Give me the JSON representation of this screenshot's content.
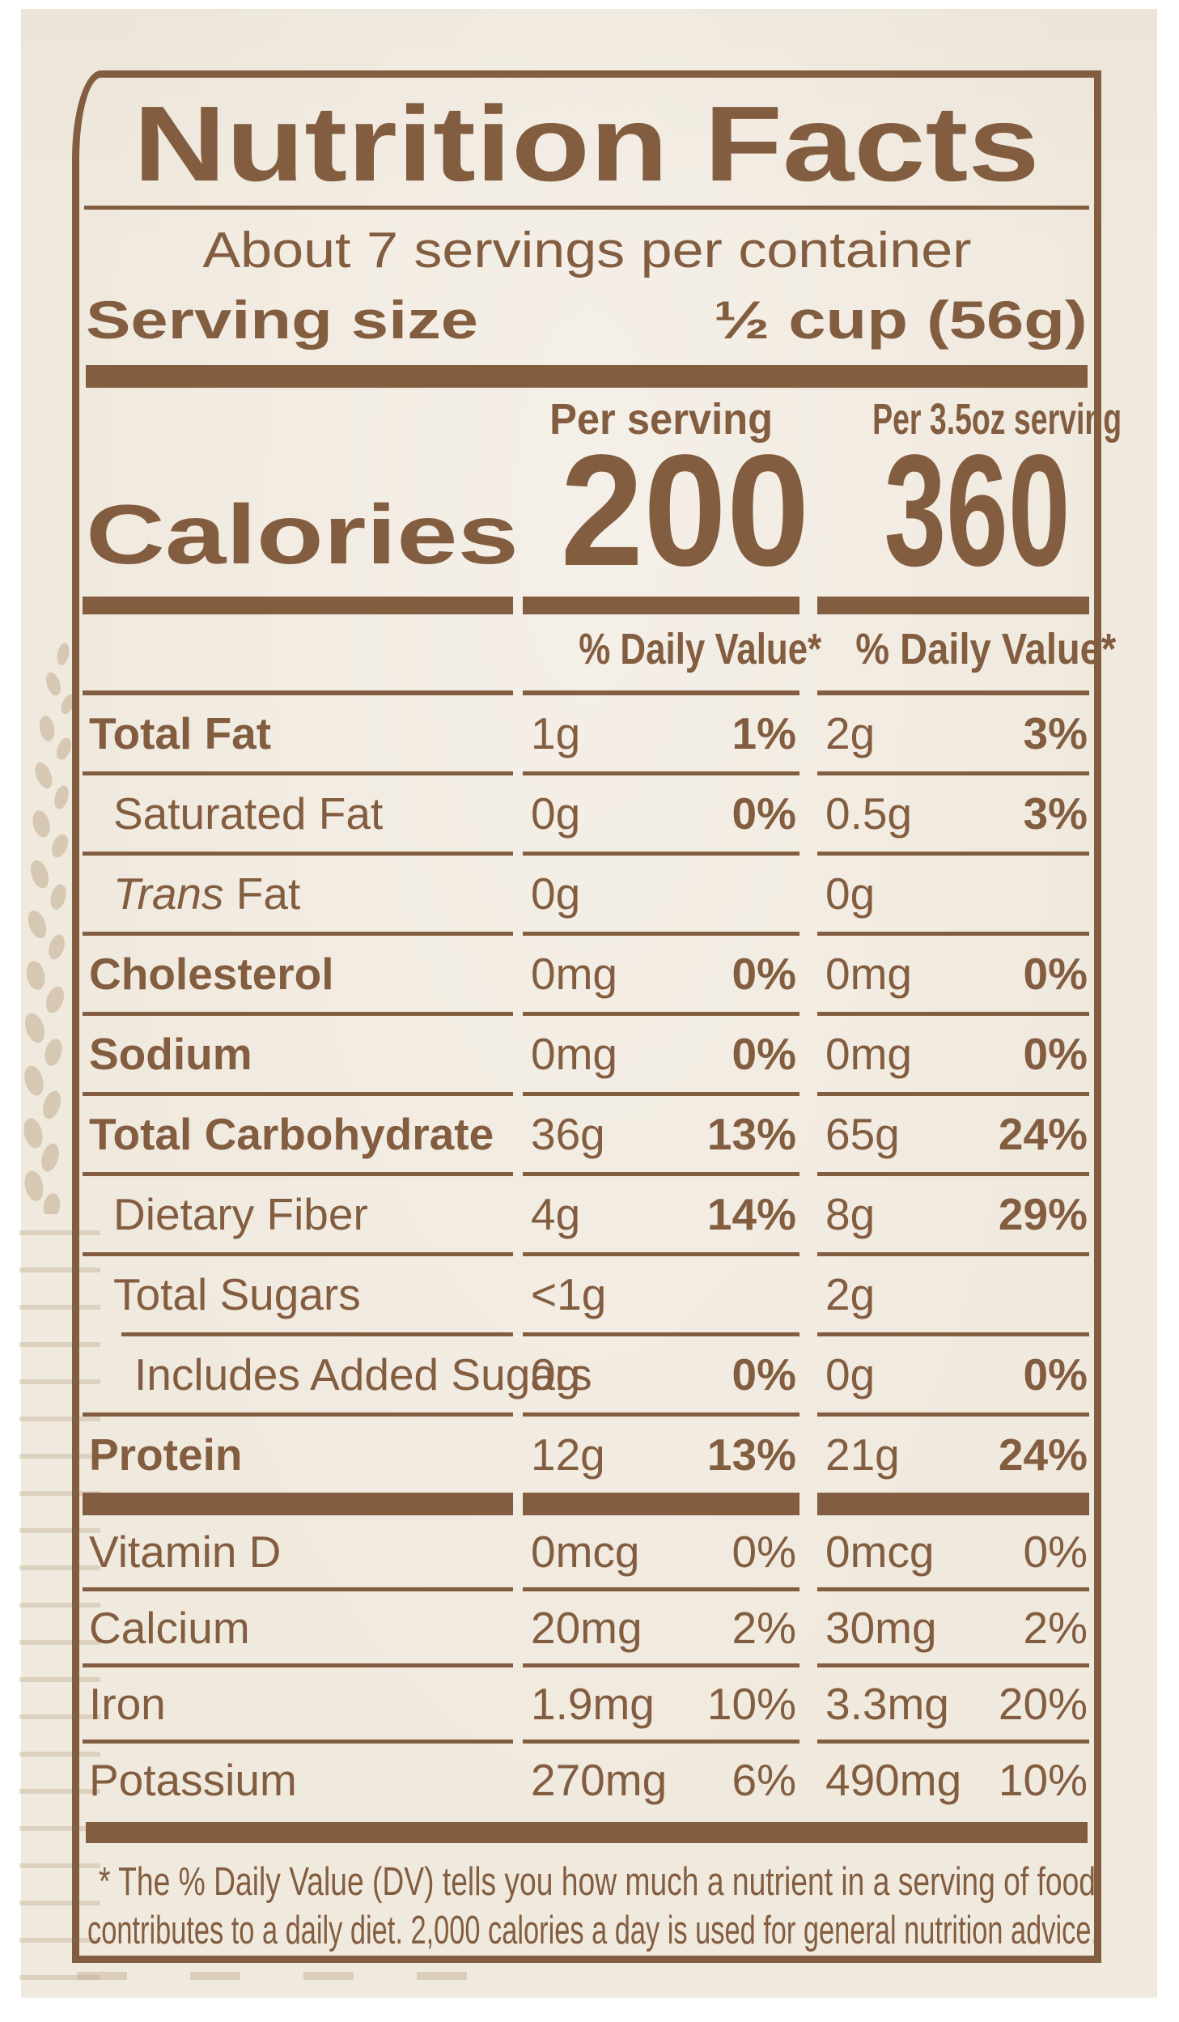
{
  "label": {
    "title": "Nutrition Facts",
    "servings_per_container": "About 7 servings per container",
    "serving_size_label": "Serving size",
    "serving_size_value": "½ cup (56g)",
    "calories_label": "Calories",
    "columns": [
      {
        "header": "Per serving",
        "calories": "200",
        "dv_header": "% Daily Value*"
      },
      {
        "header": "Per 3.5oz serving",
        "calories": "360",
        "dv_header": "% Daily Value*"
      }
    ],
    "rows": [
      {
        "label": "Total Fat",
        "bold": true,
        "indent": 0,
        "c1_amount": "1g",
        "c1_pct": "1%",
        "c2_amount": "2g",
        "c2_pct": "3%",
        "pct_bold": true
      },
      {
        "label": "Saturated Fat",
        "bold": false,
        "indent": 1,
        "c1_amount": "0g",
        "c1_pct": "0%",
        "c2_amount": "0.5g",
        "c2_pct": "3%",
        "pct_bold": true
      },
      {
        "label_italic": "Trans",
        "label": " Fat",
        "bold": false,
        "indent": 1,
        "c1_amount": "0g",
        "c1_pct": "",
        "c2_amount": "0g",
        "c2_pct": "",
        "pct_bold": true
      },
      {
        "label": "Cholesterol",
        "bold": true,
        "indent": 0,
        "c1_amount": "0mg",
        "c1_pct": "0%",
        "c2_amount": "0mg",
        "c2_pct": "0%",
        "pct_bold": true
      },
      {
        "label": "Sodium",
        "bold": true,
        "indent": 0,
        "c1_amount": "0mg",
        "c1_pct": "0%",
        "c2_amount": "0mg",
        "c2_pct": "0%",
        "pct_bold": true
      },
      {
        "label": "Total Carbohydrate",
        "bold": true,
        "indent": 0,
        "c1_amount": "36g",
        "c1_pct": "13%",
        "c2_amount": "65g",
        "c2_pct": "24%",
        "pct_bold": true
      },
      {
        "label": "Dietary Fiber",
        "bold": false,
        "indent": 1,
        "c1_amount": "4g",
        "c1_pct": "14%",
        "c2_amount": "8g",
        "c2_pct": "29%",
        "pct_bold": true
      },
      {
        "label": "Total Sugars",
        "bold": false,
        "indent": 1,
        "c1_amount": "<1g",
        "c1_pct": "",
        "c2_amount": "2g",
        "c2_pct": "",
        "pct_bold": true
      },
      {
        "label": "Includes Added Sugars",
        "bold": false,
        "indent": 2,
        "sep_indent": true,
        "c1_amount": "0g",
        "c1_pct": "0%",
        "c2_amount": "0g",
        "c2_pct": "0%",
        "pct_bold": true
      },
      {
        "label": "Protein",
        "bold": true,
        "indent": 0,
        "c1_amount": "12g",
        "c1_pct": "13%",
        "c2_amount": "21g",
        "c2_pct": "24%",
        "pct_bold": true
      }
    ],
    "vitamin_rows": [
      {
        "label": "Vitamin D",
        "c1_amount": "0mcg",
        "c1_pct": "0%",
        "c2_amount": "0mcg",
        "c2_pct": "0%",
        "pct_bold": false
      },
      {
        "label": "Calcium",
        "c1_amount": "20mg",
        "c1_pct": "2%",
        "c2_amount": "30mg",
        "c2_pct": "2%",
        "pct_bold": false
      },
      {
        "label": "Iron",
        "c1_amount": "1.9mg",
        "c1_pct": "10%",
        "c2_amount": "3.3mg",
        "c2_pct": "20%",
        "pct_bold": false
      },
      {
        "label": "Potassium",
        "c1_amount": "270mg",
        "c1_pct": "6%",
        "c2_amount": "490mg",
        "c2_pct": "10%",
        "pct_bold": false
      }
    ],
    "footnote_lines": [
      "* The % Daily Value (DV) tells you how much a nutrient in a serving of food",
      "contributes to a daily diet. 2,000 calories a day is used for general nutrition advice."
    ],
    "ink_color": "#835d40",
    "paper_color": "#f0e9de"
  }
}
